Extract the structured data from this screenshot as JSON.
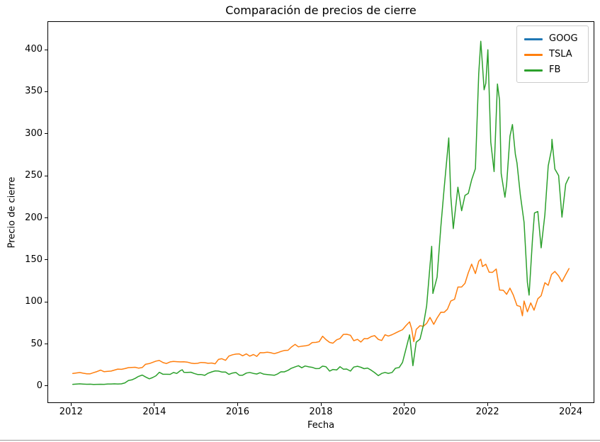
{
  "chart_data": {
    "type": "line",
    "title": "Comparación de precios de cierre",
    "xlabel": "Fecha",
    "ylabel": "Precio de cierre",
    "xlim": [
      2011.45,
      2024.55
    ],
    "ylim": [
      -19.5,
      433
    ],
    "xticks": [
      2012,
      2014,
      2016,
      2018,
      2020,
      2022,
      2024
    ],
    "yticks": [
      0,
      50,
      100,
      150,
      200,
      250,
      300,
      350,
      400
    ],
    "grid": false,
    "legend_position": "upper right",
    "series": [
      {
        "name": "GOOG",
        "color": "#1f77b4",
        "line_visible": false,
        "points": []
      },
      {
        "name": "TSLA",
        "color": "#ff7f0e",
        "line_visible": true,
        "points": [
          [
            2012.04,
            14.8
          ],
          [
            2012.12,
            15.4
          ],
          [
            2012.21,
            16.0
          ],
          [
            2012.29,
            15.1
          ],
          [
            2012.38,
            14.5
          ],
          [
            2012.46,
            14.5
          ],
          [
            2012.54,
            15.8
          ],
          [
            2012.62,
            17.1
          ],
          [
            2012.71,
            18.8
          ],
          [
            2012.79,
            17.0
          ],
          [
            2012.88,
            17.4
          ],
          [
            2012.96,
            17.7
          ],
          [
            2013.04,
            18.8
          ],
          [
            2013.12,
            20.0
          ],
          [
            2013.21,
            19.8
          ],
          [
            2013.29,
            20.6
          ],
          [
            2013.38,
            21.8
          ],
          [
            2013.46,
            22.0
          ],
          [
            2013.54,
            22.2
          ],
          [
            2013.62,
            21.2
          ],
          [
            2013.71,
            21.9
          ],
          [
            2013.79,
            25.8
          ],
          [
            2013.88,
            26.6
          ],
          [
            2013.96,
            28.0
          ],
          [
            2014.04,
            29.5
          ],
          [
            2014.12,
            30.3
          ],
          [
            2014.21,
            27.8
          ],
          [
            2014.29,
            26.7
          ],
          [
            2014.38,
            28.6
          ],
          [
            2014.46,
            29.2
          ],
          [
            2014.54,
            28.9
          ],
          [
            2014.62,
            28.6
          ],
          [
            2014.71,
            28.8
          ],
          [
            2014.79,
            28.4
          ],
          [
            2014.88,
            27.2
          ],
          [
            2014.96,
            26.6
          ],
          [
            2015.04,
            26.9
          ],
          [
            2015.12,
            27.9
          ],
          [
            2015.21,
            27.7
          ],
          [
            2015.29,
            26.9
          ],
          [
            2015.38,
            27.3
          ],
          [
            2015.46,
            26.3
          ],
          [
            2015.54,
            31.6
          ],
          [
            2015.62,
            32.4
          ],
          [
            2015.71,
            30.5
          ],
          [
            2015.79,
            35.5
          ],
          [
            2015.88,
            37.1
          ],
          [
            2015.96,
            37.9
          ],
          [
            2016.04,
            38.1
          ],
          [
            2016.12,
            35.9
          ],
          [
            2016.21,
            38.1
          ],
          [
            2016.29,
            35.4
          ],
          [
            2016.38,
            37.4
          ],
          [
            2016.46,
            35.2
          ],
          [
            2016.54,
            39.6
          ],
          [
            2016.62,
            39.5
          ],
          [
            2016.71,
            40.2
          ],
          [
            2016.79,
            39.6
          ],
          [
            2016.88,
            38.4
          ],
          [
            2016.96,
            39.6
          ],
          [
            2017.04,
            41.0
          ],
          [
            2017.12,
            42.2
          ],
          [
            2017.21,
            42.4
          ],
          [
            2017.29,
            46.2
          ],
          [
            2017.38,
            49.4
          ],
          [
            2017.46,
            46.5
          ],
          [
            2017.54,
            47.3
          ],
          [
            2017.62,
            47.7
          ],
          [
            2017.71,
            48.7
          ],
          [
            2017.79,
            51.6
          ],
          [
            2017.88,
            51.8
          ],
          [
            2017.96,
            52.7
          ],
          [
            2018.04,
            59.1
          ],
          [
            2018.12,
            55.2
          ],
          [
            2018.21,
            51.8
          ],
          [
            2018.29,
            50.9
          ],
          [
            2018.38,
            54.9
          ],
          [
            2018.46,
            56.4
          ],
          [
            2018.54,
            61.3
          ],
          [
            2018.62,
            61.5
          ],
          [
            2018.71,
            60.3
          ],
          [
            2018.79,
            53.8
          ],
          [
            2018.88,
            55.4
          ],
          [
            2018.96,
            52.2
          ],
          [
            2019.04,
            56.3
          ],
          [
            2019.12,
            56.2
          ],
          [
            2019.21,
            58.8
          ],
          [
            2019.29,
            59.9
          ],
          [
            2019.38,
            55.3
          ],
          [
            2019.46,
            54.1
          ],
          [
            2019.54,
            60.9
          ],
          [
            2019.62,
            59.4
          ],
          [
            2019.71,
            61.0
          ],
          [
            2019.79,
            62.9
          ],
          [
            2019.88,
            65.1
          ],
          [
            2019.96,
            66.9
          ],
          [
            2020.04,
            71.6
          ],
          [
            2020.13,
            76.2
          ],
          [
            2020.18,
            68.0
          ],
          [
            2020.23,
            52.8
          ],
          [
            2020.29,
            67.3
          ],
          [
            2020.38,
            71.7
          ],
          [
            2020.46,
            70.9
          ],
          [
            2020.54,
            74.4
          ],
          [
            2020.62,
            81.5
          ],
          [
            2020.71,
            73.3
          ],
          [
            2020.79,
            80.8
          ],
          [
            2020.88,
            87.7
          ],
          [
            2020.96,
            87.6
          ],
          [
            2021.04,
            91.4
          ],
          [
            2021.12,
            101.1
          ],
          [
            2021.21,
            103.1
          ],
          [
            2021.29,
            117.6
          ],
          [
            2021.38,
            117.8
          ],
          [
            2021.46,
            122.1
          ],
          [
            2021.54,
            134.7
          ],
          [
            2021.62,
            144.9
          ],
          [
            2021.71,
            133.7
          ],
          [
            2021.79,
            148.3
          ],
          [
            2021.84,
            150.7
          ],
          [
            2021.88,
            142.0
          ],
          [
            2021.96,
            144.8
          ],
          [
            2022.04,
            135.3
          ],
          [
            2022.12,
            135.1
          ],
          [
            2022.21,
            139.1
          ],
          [
            2022.29,
            114.1
          ],
          [
            2022.38,
            113.8
          ],
          [
            2022.46,
            109.0
          ],
          [
            2022.54,
            116.3
          ],
          [
            2022.62,
            108.2
          ],
          [
            2022.71,
            95.7
          ],
          [
            2022.79,
            94.5
          ],
          [
            2022.84,
            83.5
          ],
          [
            2022.88,
            101.0
          ],
          [
            2022.96,
            88.2
          ],
          [
            2023.04,
            98.8
          ],
          [
            2023.12,
            90.1
          ],
          [
            2023.21,
            103.7
          ],
          [
            2023.29,
            107.3
          ],
          [
            2023.38,
            122.8
          ],
          [
            2023.46,
            119.7
          ],
          [
            2023.54,
            132.7
          ],
          [
            2023.62,
            136.2
          ],
          [
            2023.71,
            130.9
          ],
          [
            2023.79,
            124.1
          ],
          [
            2023.88,
            132.5
          ],
          [
            2023.96,
            139.7
          ]
        ]
      },
      {
        "name": "FB",
        "color": "#2ca02c",
        "line_visible": true,
        "points": [
          [
            2012.04,
            1.9
          ],
          [
            2012.12,
            2.2
          ],
          [
            2012.21,
            2.5
          ],
          [
            2012.29,
            2.2
          ],
          [
            2012.38,
            2.0
          ],
          [
            2012.46,
            2.1
          ],
          [
            2012.54,
            1.8
          ],
          [
            2012.62,
            1.9
          ],
          [
            2012.71,
            2.0
          ],
          [
            2012.79,
            1.9
          ],
          [
            2012.88,
            2.3
          ],
          [
            2012.96,
            2.3
          ],
          [
            2013.04,
            2.5
          ],
          [
            2013.12,
            2.3
          ],
          [
            2013.21,
            2.5
          ],
          [
            2013.29,
            3.6
          ],
          [
            2013.38,
            6.5
          ],
          [
            2013.46,
            7.2
          ],
          [
            2013.54,
            9.0
          ],
          [
            2013.62,
            11.3
          ],
          [
            2013.71,
            12.9
          ],
          [
            2013.79,
            10.7
          ],
          [
            2013.88,
            8.5
          ],
          [
            2013.96,
            10.0
          ],
          [
            2014.04,
            12.1
          ],
          [
            2014.12,
            16.2
          ],
          [
            2014.21,
            13.9
          ],
          [
            2014.29,
            13.9
          ],
          [
            2014.38,
            13.8
          ],
          [
            2014.46,
            16.0
          ],
          [
            2014.54,
            14.9
          ],
          [
            2014.62,
            18.0
          ],
          [
            2014.67,
            19.3
          ],
          [
            2014.71,
            16.2
          ],
          [
            2014.79,
            16.1
          ],
          [
            2014.88,
            16.3
          ],
          [
            2014.96,
            14.8
          ],
          [
            2015.04,
            13.6
          ],
          [
            2015.12,
            13.6
          ],
          [
            2015.21,
            12.6
          ],
          [
            2015.29,
            15.1
          ],
          [
            2015.38,
            16.7
          ],
          [
            2015.46,
            17.9
          ],
          [
            2015.54,
            17.7
          ],
          [
            2015.62,
            16.6
          ],
          [
            2015.71,
            16.6
          ],
          [
            2015.79,
            13.8
          ],
          [
            2015.88,
            15.4
          ],
          [
            2015.96,
            16.0
          ],
          [
            2016.04,
            12.8
          ],
          [
            2016.12,
            12.8
          ],
          [
            2016.21,
            15.3
          ],
          [
            2016.29,
            16.1
          ],
          [
            2016.38,
            14.9
          ],
          [
            2016.46,
            14.2
          ],
          [
            2016.54,
            15.7
          ],
          [
            2016.62,
            14.1
          ],
          [
            2016.71,
            13.6
          ],
          [
            2016.79,
            13.2
          ],
          [
            2016.88,
            12.7
          ],
          [
            2016.96,
            14.3
          ],
          [
            2017.04,
            16.8
          ],
          [
            2017.12,
            16.7
          ],
          [
            2017.21,
            18.6
          ],
          [
            2017.29,
            21.0
          ],
          [
            2017.38,
            22.7
          ],
          [
            2017.46,
            24.1
          ],
          [
            2017.54,
            21.6
          ],
          [
            2017.62,
            23.7
          ],
          [
            2017.71,
            22.7
          ],
          [
            2017.79,
            22.1
          ],
          [
            2017.88,
            20.6
          ],
          [
            2017.96,
            20.8
          ],
          [
            2018.04,
            23.6
          ],
          [
            2018.12,
            22.9
          ],
          [
            2018.21,
            17.7
          ],
          [
            2018.29,
            19.6
          ],
          [
            2018.38,
            19.0
          ],
          [
            2018.46,
            22.9
          ],
          [
            2018.54,
            19.9
          ],
          [
            2018.62,
            20.1
          ],
          [
            2018.71,
            17.7
          ],
          [
            2018.79,
            22.5
          ],
          [
            2018.88,
            23.4
          ],
          [
            2018.96,
            22.2
          ],
          [
            2019.04,
            20.5
          ],
          [
            2019.12,
            21.3
          ],
          [
            2019.21,
            18.7
          ],
          [
            2019.29,
            15.9
          ],
          [
            2019.38,
            12.3
          ],
          [
            2019.46,
            14.9
          ],
          [
            2019.54,
            16.1
          ],
          [
            2019.62,
            15.0
          ],
          [
            2019.71,
            16.1
          ],
          [
            2019.79,
            21.0
          ],
          [
            2019.88,
            22.0
          ],
          [
            2019.96,
            27.9
          ],
          [
            2020.04,
            43.4
          ],
          [
            2020.13,
            60.8
          ],
          [
            2020.21,
            24.1
          ],
          [
            2020.29,
            52.1
          ],
          [
            2020.38,
            55.7
          ],
          [
            2020.46,
            72.0
          ],
          [
            2020.54,
            95.4
          ],
          [
            2020.62,
            143.0
          ],
          [
            2020.66,
            166.1
          ],
          [
            2020.69,
            110.0
          ],
          [
            2020.79,
            129.4
          ],
          [
            2020.88,
            189.2
          ],
          [
            2020.96,
            235.2
          ],
          [
            2021.07,
            295.0
          ],
          [
            2021.12,
            225.2
          ],
          [
            2021.18,
            187.2
          ],
          [
            2021.29,
            236.5
          ],
          [
            2021.38,
            208.4
          ],
          [
            2021.46,
            226.6
          ],
          [
            2021.54,
            229.1
          ],
          [
            2021.62,
            245.2
          ],
          [
            2021.71,
            258.5
          ],
          [
            2021.79,
            371.3
          ],
          [
            2021.84,
            410.0
          ],
          [
            2021.88,
            381.6
          ],
          [
            2021.92,
            352.3
          ],
          [
            2021.96,
            360.0
          ],
          [
            2022.01,
            399.9
          ],
          [
            2022.08,
            290.1
          ],
          [
            2022.16,
            255.0
          ],
          [
            2022.24,
            359.2
          ],
          [
            2022.29,
            340.0
          ],
          [
            2022.33,
            252.8
          ],
          [
            2022.42,
            224.5
          ],
          [
            2022.46,
            240.0
          ],
          [
            2022.54,
            297.2
          ],
          [
            2022.6,
            311.0
          ],
          [
            2022.67,
            275.6
          ],
          [
            2022.71,
            265.3
          ],
          [
            2022.79,
            227.5
          ],
          [
            2022.88,
            194.7
          ],
          [
            2022.96,
            123.2
          ],
          [
            2023.0,
            108.1
          ],
          [
            2023.08,
            173.2
          ],
          [
            2023.13,
            205.7
          ],
          [
            2023.21,
            207.5
          ],
          [
            2023.29,
            164.3
          ],
          [
            2023.38,
            203.9
          ],
          [
            2023.46,
            261.8
          ],
          [
            2023.54,
            281.4
          ],
          [
            2023.55,
            293.3
          ],
          [
            2023.62,
            258.1
          ],
          [
            2023.71,
            250.2
          ],
          [
            2023.79,
            200.8
          ],
          [
            2023.88,
            240.1
          ],
          [
            2023.96,
            248.5
          ]
        ]
      }
    ]
  }
}
